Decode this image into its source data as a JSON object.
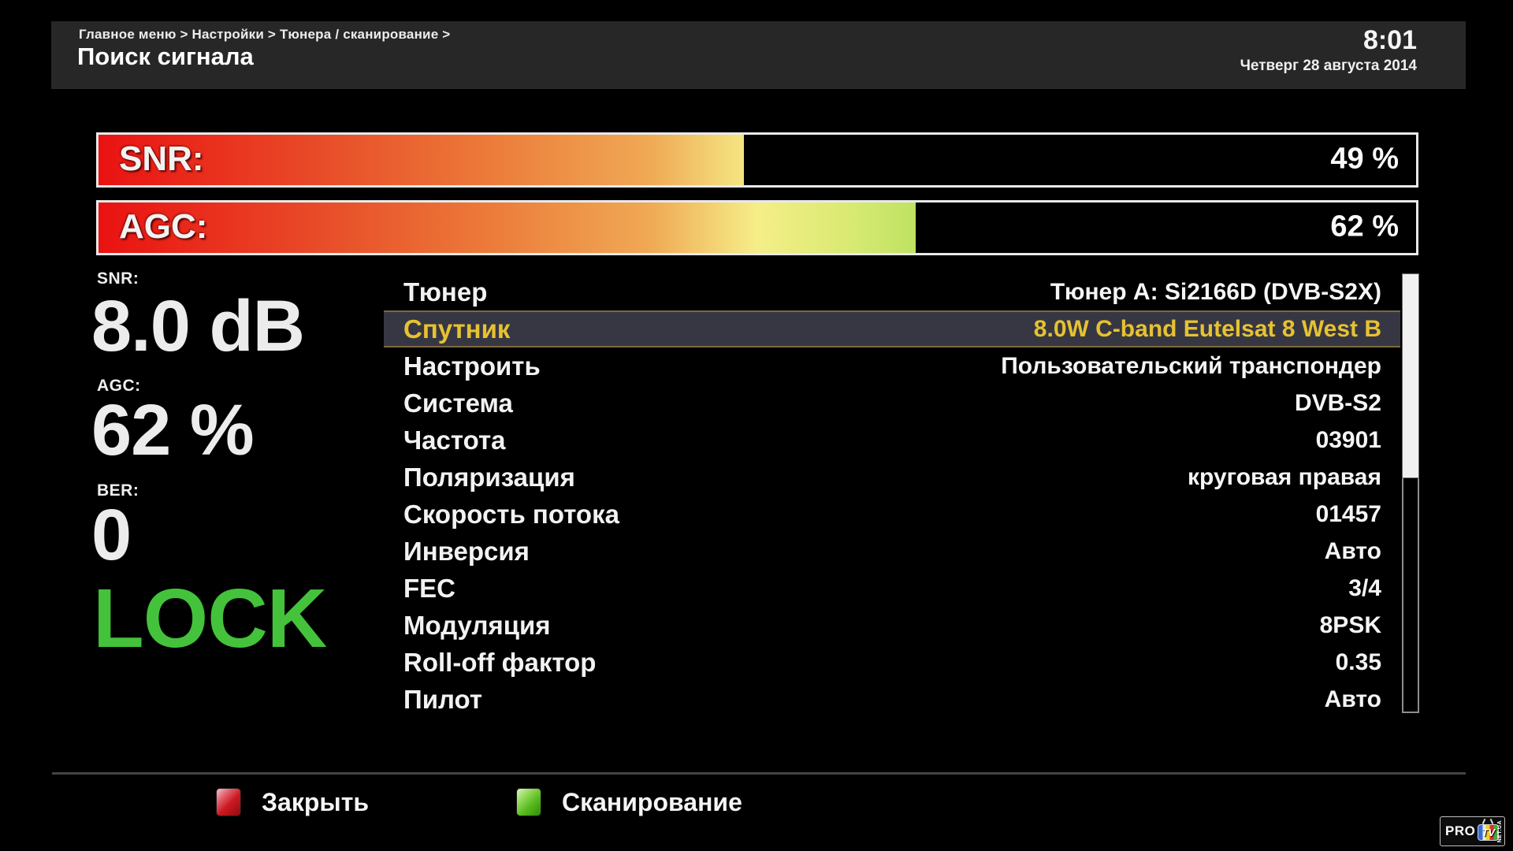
{
  "header": {
    "breadcrumb": "Главное меню > Настройки > Тюнера / сканирование >",
    "title": "Поиск сигнала",
    "time": "8:01",
    "date": "Четверг 28 августа 2014"
  },
  "signal_bars": [
    {
      "label": "SNR:",
      "value": "49 %",
      "percent": 49
    },
    {
      "label": "AGC:",
      "value": "62 %",
      "percent": 62
    }
  ],
  "metrics": [
    {
      "label": "SNR:",
      "value": "8.0 dB"
    },
    {
      "label": "AGC:",
      "value": "62 %"
    },
    {
      "label": "BER:",
      "value": "0"
    }
  ],
  "lock_status": "LOCK",
  "settings": {
    "rows": [
      {
        "label": "Тюнер",
        "value": "Тюнер A: Si2166D (DVB-S2X)",
        "selected": false
      },
      {
        "label": "Спутник",
        "value": "8.0W C-band Eutelsat 8 West B",
        "selected": true
      },
      {
        "label": "Настроить",
        "value": "Пользовательский транспондер",
        "selected": false
      },
      {
        "label": "Система",
        "value": "DVB-S2",
        "selected": false
      },
      {
        "label": "Частота",
        "value": "03901",
        "selected": false
      },
      {
        "label": "Поляризация",
        "value": "круговая правая",
        "selected": false
      },
      {
        "label": "Скорость потока",
        "value": "01457",
        "selected": false
      },
      {
        "label": "Инверсия",
        "value": "Авто",
        "selected": false
      },
      {
        "label": "FEC",
        "value": "3/4",
        "selected": false
      },
      {
        "label": "Модуляция",
        "value": "8PSK",
        "selected": false
      },
      {
        "label": "Roll-off фактор",
        "value": "0.35",
        "selected": false
      },
      {
        "label": "Пилот",
        "value": "Авто",
        "selected": false
      }
    ]
  },
  "footer": {
    "buttons": [
      {
        "label": "Закрыть",
        "key_color": "red"
      },
      {
        "label": "Сканирование",
        "key_color": "green"
      }
    ]
  },
  "watermark": {
    "pro": "PRO",
    "tv": "TV",
    "net": "NET.UA"
  },
  "colors": {
    "lock_green": "#44c23c",
    "selected_text": "#e6c231",
    "selected_bg": "#373743",
    "red_key": "#cc1a22",
    "green_key": "#58bb1e"
  }
}
